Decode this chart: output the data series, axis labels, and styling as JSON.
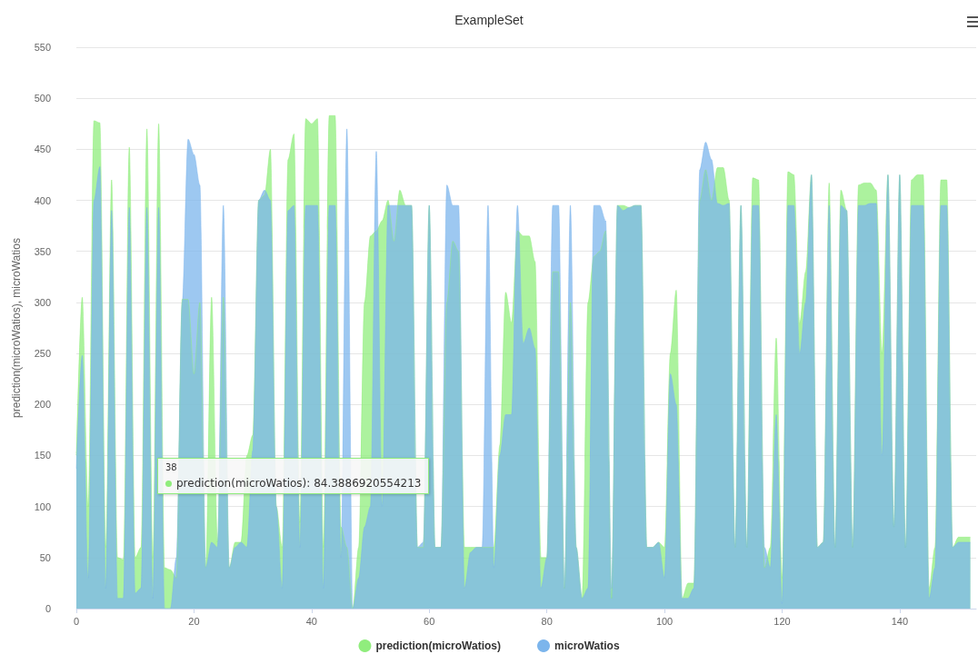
{
  "chart_data": {
    "type": "area",
    "title": "ExampleSet",
    "ylabel": "prediction(microWatios), microWatios",
    "x": [
      0,
      1,
      2,
      3,
      4,
      5,
      6,
      7,
      8,
      9,
      10,
      11,
      12,
      13,
      14,
      15,
      16,
      17,
      18,
      19,
      20,
      21,
      22,
      23,
      24,
      25,
      26,
      27,
      28,
      29,
      30,
      31,
      32,
      33,
      34,
      35,
      36,
      37,
      38,
      39,
      40,
      41,
      42,
      43,
      44,
      45,
      46,
      47,
      48,
      49,
      50,
      51,
      52,
      53,
      54,
      55,
      56,
      57,
      58,
      59,
      60,
      61,
      62,
      63,
      64,
      65,
      66,
      67,
      68,
      69,
      70,
      71,
      72,
      73,
      74,
      75,
      76,
      77,
      78,
      79,
      80,
      81,
      82,
      83,
      84,
      85,
      86,
      87,
      88,
      89,
      90,
      91,
      92,
      93,
      94,
      95,
      96,
      97,
      98,
      99,
      100,
      101,
      102,
      103,
      104,
      105,
      106,
      107,
      108,
      109,
      110,
      111,
      112,
      113,
      114,
      115,
      116,
      117,
      118,
      119,
      120,
      121,
      122,
      123,
      124,
      125,
      126,
      127,
      128,
      129,
      130,
      131,
      132,
      133,
      134,
      135,
      136,
      137,
      138,
      139,
      140,
      141,
      142,
      143,
      144,
      145,
      146,
      147,
      148,
      149,
      150,
      151,
      152
    ],
    "series": [
      {
        "name": "prediction(microWatios)",
        "color": "#90ed7d",
        "values": [
          150,
          305,
          100,
          478,
          476,
          60,
          420,
          50,
          48,
          452,
          50,
          60,
          470,
          50,
          475,
          40,
          38,
          30,
          303,
          303,
          230,
          300,
          40,
          305,
          65,
          305,
          40,
          65,
          65,
          150,
          170,
          400,
          405,
          450,
          100,
          60,
          440,
          465,
          84.3886920554213,
          480,
          475,
          480,
          60,
          483,
          483,
          80,
          60,
          0,
          60,
          300,
          365,
          370,
          380,
          400,
          360,
          410,
          395,
          395,
          60,
          60,
          395,
          60,
          60,
          300,
          360,
          350,
          60,
          60,
          60,
          60,
          60,
          60,
          160,
          310,
          280,
          370,
          365,
          365,
          340,
          50,
          50,
          330,
          330,
          20,
          300,
          60,
          10,
          300,
          345,
          350,
          370,
          10,
          395,
          395,
          393,
          395,
          395,
          60,
          60,
          65,
          60,
          250,
          312,
          10,
          25,
          25,
          400,
          430,
          400,
          432,
          432,
          400,
          60,
          395,
          60,
          422,
          420,
          40,
          60,
          265,
          30,
          428,
          425,
          280,
          330,
          425,
          60,
          65,
          417,
          60,
          410,
          390,
          60,
          415,
          417,
          417,
          410,
          250,
          425,
          80,
          425,
          60,
          420,
          425,
          425,
          20,
          60,
          420,
          420,
          60,
          70,
          70,
          70
        ]
      },
      {
        "name": "microWatios",
        "color": "#7cb5ec",
        "values": [
          137,
          248,
          30,
          400,
          433,
          20,
          390,
          10,
          10,
          393,
          15,
          20,
          393,
          10,
          393,
          0,
          0,
          50,
          300,
          460,
          445,
          415,
          40,
          65,
          60,
          395,
          40,
          60,
          65,
          60,
          155,
          400,
          410,
          400,
          100,
          20,
          390,
          395,
          60,
          395,
          395,
          395,
          20,
          395,
          395,
          50,
          470,
          0,
          30,
          80,
          100,
          448,
          100,
          395,
          395,
          395,
          395,
          395,
          60,
          65,
          395,
          60,
          60,
          415,
          395,
          395,
          20,
          55,
          60,
          60,
          395,
          40,
          150,
          190,
          190,
          395,
          260,
          275,
          255,
          20,
          50,
          395,
          395,
          20,
          395,
          60,
          10,
          20,
          395,
          395,
          380,
          20,
          395,
          390,
          393,
          395,
          395,
          60,
          60,
          65,
          30,
          230,
          200,
          10,
          10,
          20,
          430,
          457,
          440,
          397,
          395,
          397,
          60,
          395,
          60,
          395,
          395,
          60,
          40,
          190,
          5,
          395,
          395,
          250,
          300,
          425,
          60,
          65,
          395,
          60,
          395,
          390,
          60,
          395,
          395,
          397,
          397,
          150,
          425,
          80,
          425,
          60,
          395,
          395,
          395,
          10,
          40,
          395,
          395,
          60,
          65,
          65,
          65
        ]
      }
    ],
    "xlim": [
      0,
      153
    ],
    "xticks": [
      0,
      20,
      40,
      60,
      80,
      100,
      120,
      140
    ],
    "ylim": [
      0,
      550
    ],
    "yticks": [
      0,
      50,
      100,
      150,
      200,
      250,
      300,
      350,
      400,
      450,
      500,
      550
    ],
    "grid": "y",
    "legend": "bottom",
    "marker": "none",
    "line_style": "solid",
    "annotations": [
      "38",
      "prediction(microWatios): 84.3886920554213"
    ]
  }
}
